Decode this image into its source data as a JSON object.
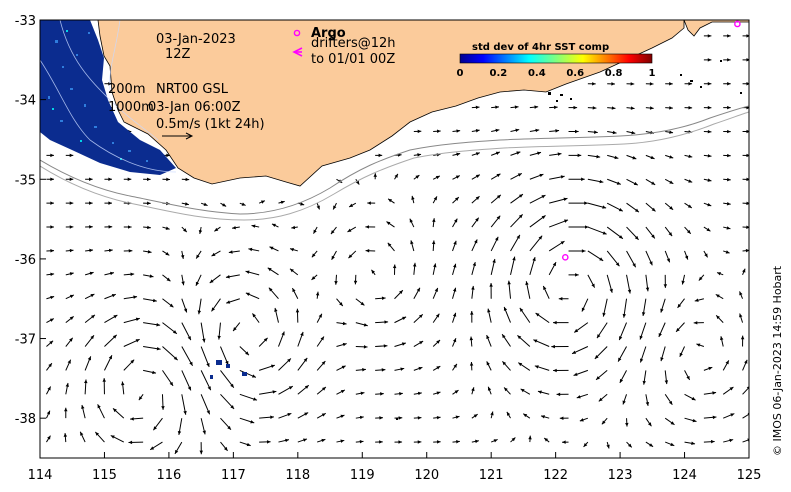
{
  "map": {
    "date": "03-Jan-2023",
    "time": "12Z",
    "contour_shallow": "200m",
    "contour_deep": "1000m",
    "product": "NRT00 GSL",
    "product_time": "03-Jan 06:00Z",
    "scale_label": "0.5m/s (1kt 24h)",
    "argo_label": "Argo",
    "drifters_label": "drifters@12h",
    "drifters_time": "to 01/01 00Z",
    "credit": "© IMOS 06-Jan-2023 14:59 Hobart",
    "colors": {
      "land": "#fbcb9b",
      "argo": "#ff00ff",
      "sst_high": "#0b2c8f"
    }
  },
  "axes": {
    "x_ticks": [
      "114",
      "115",
      "116",
      "117",
      "118",
      "119",
      "120",
      "121",
      "122",
      "123",
      "124",
      "125"
    ],
    "y_ticks": [
      "-33",
      "-34",
      "-35",
      "-36",
      "-37",
      "-38"
    ]
  },
  "colorbar": {
    "title": "std dev of 4hr SST comp",
    "ticks": [
      "0",
      "0.2",
      "0.4",
      "0.6",
      "0.8",
      "1"
    ],
    "range": [
      0,
      1
    ]
  },
  "argo_floats": [
    {
      "lon": 122.15,
      "lat": -35.98
    },
    {
      "lon": 124.82,
      "lat": -33.05
    }
  ]
}
